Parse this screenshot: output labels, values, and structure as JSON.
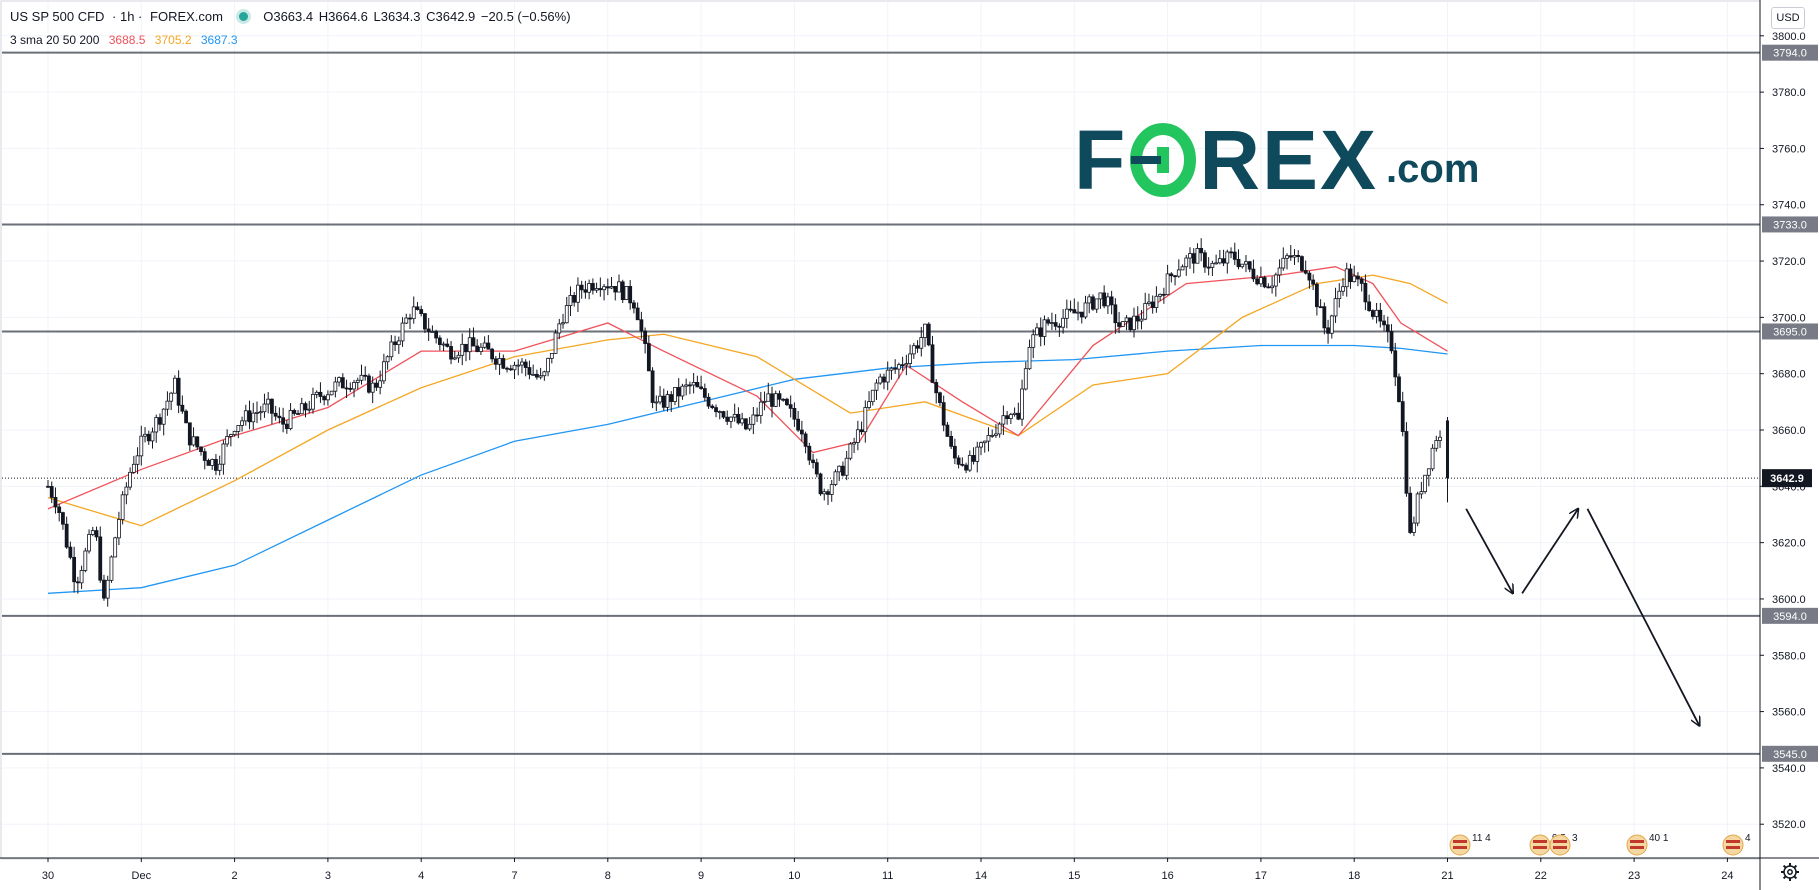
{
  "header": {
    "symbol": "US SP 500 CFD",
    "interval": "· 1h ·",
    "source": "FOREX.com",
    "open": "O3663.4",
    "high": "H3664.6",
    "low": "L3634.3",
    "close": "C3642.9",
    "change": "−20.5 (−0.56%)"
  },
  "indicator": {
    "label": "3 sma 20 50 200",
    "values": [
      "3688.5",
      "3705.2",
      "3687.3"
    ],
    "colors": [
      "#f0525a",
      "#f5a623",
      "#2196f3"
    ]
  },
  "currency": "USD",
  "logo": {
    "text_pre": "F",
    "text_post": "REX",
    "dotcom": ".com",
    "color": "#0f4a5c",
    "accent": "#22c55e"
  },
  "price_axis": {
    "ticks": [
      "3800.0",
      "3780.0",
      "3760.0",
      "3740.0",
      "3720.0",
      "3700.0",
      "3680.0",
      "3660.0",
      "3640.0",
      "3620.0",
      "3600.0",
      "3580.0",
      "3560.0",
      "3540.0",
      "3520.0"
    ],
    "level_labels": [
      "3794.0",
      "3733.0",
      "3695.0",
      "3594.0",
      "3545.0"
    ],
    "current_label": "3642.9"
  },
  "time_axis": {
    "labels": [
      "30",
      "Dec",
      "2",
      "3",
      "4",
      "7",
      "8",
      "9",
      "10",
      "11",
      "14",
      "15",
      "16",
      "17",
      "18",
      "21",
      "22",
      "23",
      "24"
    ]
  },
  "events": [
    "11 4",
    "9 5",
    "3",
    "40 1",
    "4"
  ],
  "chart_data": {
    "type": "candlestick",
    "title": "US SP 500 CFD · 1h · FOREX.com",
    "ylim": [
      3508,
      3812
    ],
    "x_categories": [
      "30",
      "Dec",
      "2",
      "3",
      "4",
      "7",
      "8",
      "9",
      "10",
      "11",
      "14",
      "15",
      "16",
      "17",
      "18",
      "21",
      "22",
      "23",
      "24"
    ],
    "horizontal_levels": [
      3794,
      3733,
      3695,
      3594,
      3545
    ],
    "current_price": 3642.9,
    "last_bar": {
      "open": 3663.4,
      "high": 3664.6,
      "low": 3634.3,
      "close": 3642.9
    },
    "sma": [
      {
        "name": "sma 20",
        "last": 3688.5,
        "color": "#f0525a"
      },
      {
        "name": "sma 50",
        "last": 3705.2,
        "color": "#f5a623"
      },
      {
        "name": "sma 200",
        "last": 3687.3,
        "color": "#2196f3"
      }
    ],
    "price_anchors": [
      [
        0,
        3640
      ],
      [
        0.5,
        3634
      ],
      [
        1.5,
        3606
      ],
      [
        2.5,
        3626
      ],
      [
        3,
        3598
      ],
      [
        3.7,
        3626
      ],
      [
        4.5,
        3648
      ],
      [
        5,
        3655
      ],
      [
        6,
        3665
      ],
      [
        6.8,
        3676
      ],
      [
        7.5,
        3658
      ],
      [
        8.5,
        3650
      ],
      [
        9,
        3648
      ],
      [
        10,
        3662
      ],
      [
        11,
        3666
      ],
      [
        11.8,
        3668
      ],
      [
        12.5,
        3662
      ],
      [
        13.5,
        3666
      ],
      [
        14.5,
        3672
      ],
      [
        15.5,
        3676
      ],
      [
        16.5,
        3678
      ],
      [
        17.5,
        3675
      ],
      [
        18.5,
        3690
      ],
      [
        19.5,
        3703
      ],
      [
        20.5,
        3695
      ],
      [
        21.5,
        3688
      ],
      [
        22.5,
        3690
      ],
      [
        23.5,
        3688
      ],
      [
        24.5,
        3684
      ],
      [
        25.5,
        3683
      ],
      [
        26.5,
        3677
      ],
      [
        27.5,
        3700
      ],
      [
        28.5,
        3710
      ],
      [
        29.5,
        3713
      ],
      [
        30.5,
        3711
      ],
      [
        31.5,
        3705
      ],
      [
        32,
        3688
      ],
      [
        32.5,
        3668
      ],
      [
        33.5,
        3672
      ],
      [
        34.5,
        3676
      ],
      [
        35.5,
        3670
      ],
      [
        36.5,
        3665
      ],
      [
        37.5,
        3660
      ],
      [
        38.5,
        3672
      ],
      [
        39.5,
        3668
      ],
      [
        40.5,
        3660
      ],
      [
        41,
        3646
      ],
      [
        41.5,
        3638
      ],
      [
        42.5,
        3645
      ],
      [
        43.5,
        3660
      ],
      [
        44.5,
        3678
      ],
      [
        45.5,
        3682
      ],
      [
        46.5,
        3690
      ],
      [
        47,
        3695
      ],
      [
        47.5,
        3676
      ],
      [
        48.5,
        3650
      ],
      [
        49.5,
        3648
      ],
      [
        50.5,
        3658
      ],
      [
        51.5,
        3668
      ],
      [
        52,
        3663
      ],
      [
        52.5,
        3690
      ],
      [
        53.5,
        3698
      ],
      [
        54.5,
        3700
      ],
      [
        55.5,
        3703
      ],
      [
        56.5,
        3708
      ],
      [
        57.5,
        3696
      ],
      [
        58.5,
        3700
      ],
      [
        59.5,
        3708
      ],
      [
        60.5,
        3718
      ],
      [
        61.5,
        3722
      ],
      [
        62.5,
        3718
      ],
      [
        63.5,
        3722
      ],
      [
        64.5,
        3716
      ],
      [
        65.5,
        3712
      ],
      [
        66.5,
        3722
      ],
      [
        67.5,
        3718
      ],
      [
        68,
        3706
      ],
      [
        68.5,
        3694
      ],
      [
        69.5,
        3716
      ],
      [
        70.5,
        3710
      ],
      [
        71,
        3702
      ],
      [
        72,
        3690
      ],
      [
        72.5,
        3668
      ],
      [
        73,
        3622
      ],
      [
        73.5,
        3638
      ],
      [
        74.5,
        3660
      ],
      [
        75,
        3643
      ]
    ],
    "sma20_points": [
      [
        0,
        3632
      ],
      [
        5,
        3646
      ],
      [
        10,
        3658
      ],
      [
        15,
        3668
      ],
      [
        20,
        3688
      ],
      [
        25,
        3688
      ],
      [
        30,
        3698
      ],
      [
        33,
        3688
      ],
      [
        38,
        3672
      ],
      [
        41,
        3652
      ],
      [
        43.5,
        3656
      ],
      [
        46,
        3683
      ],
      [
        49,
        3670
      ],
      [
        52,
        3658
      ],
      [
        56,
        3690
      ],
      [
        61,
        3712
      ],
      [
        66,
        3715
      ],
      [
        69,
        3718
      ],
      [
        71,
        3712
      ],
      [
        72.5,
        3698
      ],
      [
        75,
        3688
      ]
    ],
    "sma50_points": [
      [
        0,
        3636
      ],
      [
        5,
        3626
      ],
      [
        10,
        3642
      ],
      [
        15,
        3660
      ],
      [
        20,
        3675
      ],
      [
        25,
        3686
      ],
      [
        30,
        3692
      ],
      [
        33,
        3694
      ],
      [
        38,
        3686
      ],
      [
        43,
        3666
      ],
      [
        47,
        3670
      ],
      [
        52,
        3658
      ],
      [
        56,
        3676
      ],
      [
        60,
        3680
      ],
      [
        64,
        3700
      ],
      [
        68,
        3712
      ],
      [
        71,
        3715
      ],
      [
        73,
        3712
      ],
      [
        75,
        3705
      ]
    ],
    "sma200_points": [
      [
        0,
        3602
      ],
      [
        5,
        3604
      ],
      [
        10,
        3612
      ],
      [
        15,
        3628
      ],
      [
        20,
        3644
      ],
      [
        25,
        3656
      ],
      [
        30,
        3662
      ],
      [
        35,
        3670
      ],
      [
        40,
        3678
      ],
      [
        45,
        3682
      ],
      [
        50,
        3684
      ],
      [
        55,
        3685
      ],
      [
        60,
        3688
      ],
      [
        65,
        3690
      ],
      [
        70,
        3690
      ],
      [
        72.5,
        3689
      ],
      [
        75,
        3687
      ]
    ],
    "projection_arrows": [
      {
        "from": [
          76,
          3632
        ],
        "to": [
          78.5,
          3602
        ]
      },
      {
        "from": [
          79,
          3602
        ],
        "to": [
          82,
          3632
        ]
      },
      {
        "from": [
          82.5,
          3632
        ],
        "to": [
          88.5,
          3555
        ]
      }
    ]
  }
}
